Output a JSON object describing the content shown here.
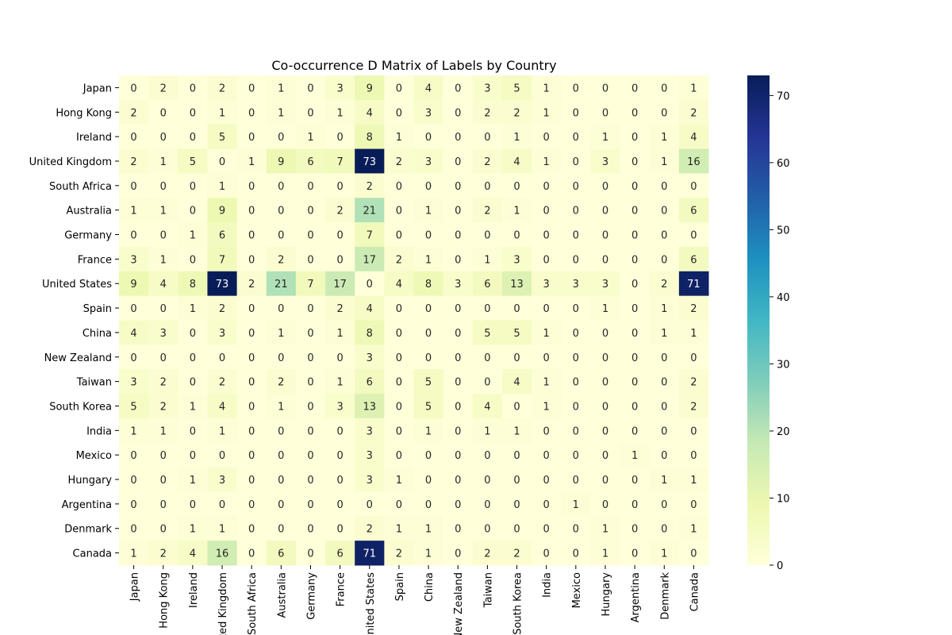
{
  "chart_data": {
    "type": "heatmap",
    "title": "Co-occurrence D Matrix of Labels by Country",
    "rows": [
      "Japan",
      "Hong Kong",
      "Ireland",
      "United Kingdom",
      "South Africa",
      "Australia",
      "Germany",
      "France",
      "United States",
      "Spain",
      "China",
      "New Zealand",
      "Taiwan",
      "South Korea",
      "India",
      "Mexico",
      "Hungary",
      "Argentina",
      "Denmark",
      "Canada"
    ],
    "columns": [
      "Japan",
      "Hong Kong",
      "Ireland",
      "United Kingdom",
      "South Africa",
      "Australia",
      "Germany",
      "France",
      "United States",
      "Spain",
      "China",
      "New Zealand",
      "Taiwan",
      "South Korea",
      "India",
      "Mexico",
      "Hungary",
      "Argentina",
      "Denmark",
      "Canada"
    ],
    "values": [
      [
        0,
        2,
        0,
        2,
        0,
        1,
        0,
        3,
        9,
        0,
        4,
        0,
        3,
        5,
        1,
        0,
        0,
        0,
        0,
        1
      ],
      [
        2,
        0,
        0,
        1,
        0,
        1,
        0,
        1,
        4,
        0,
        3,
        0,
        2,
        2,
        1,
        0,
        0,
        0,
        0,
        2
      ],
      [
        0,
        0,
        0,
        5,
        0,
        0,
        1,
        0,
        8,
        1,
        0,
        0,
        0,
        1,
        0,
        0,
        1,
        0,
        1,
        4
      ],
      [
        2,
        1,
        5,
        0,
        1,
        9,
        6,
        7,
        73,
        2,
        3,
        0,
        2,
        4,
        1,
        0,
        3,
        0,
        1,
        16
      ],
      [
        0,
        0,
        0,
        1,
        0,
        0,
        0,
        0,
        2,
        0,
        0,
        0,
        0,
        0,
        0,
        0,
        0,
        0,
        0,
        0
      ],
      [
        1,
        1,
        0,
        9,
        0,
        0,
        0,
        2,
        21,
        0,
        1,
        0,
        2,
        1,
        0,
        0,
        0,
        0,
        0,
        6
      ],
      [
        0,
        0,
        1,
        6,
        0,
        0,
        0,
        0,
        7,
        0,
        0,
        0,
        0,
        0,
        0,
        0,
        0,
        0,
        0,
        0
      ],
      [
        3,
        1,
        0,
        7,
        0,
        2,
        0,
        0,
        17,
        2,
        1,
        0,
        1,
        3,
        0,
        0,
        0,
        0,
        0,
        6
      ],
      [
        9,
        4,
        8,
        73,
        2,
        21,
        7,
        17,
        0,
        4,
        8,
        3,
        6,
        13,
        3,
        3,
        3,
        0,
        2,
        71
      ],
      [
        0,
        0,
        1,
        2,
        0,
        0,
        0,
        2,
        4,
        0,
        0,
        0,
        0,
        0,
        0,
        0,
        1,
        0,
        1,
        2
      ],
      [
        4,
        3,
        0,
        3,
        0,
        1,
        0,
        1,
        8,
        0,
        0,
        0,
        5,
        5,
        1,
        0,
        0,
        0,
        1,
        1
      ],
      [
        0,
        0,
        0,
        0,
        0,
        0,
        0,
        0,
        3,
        0,
        0,
        0,
        0,
        0,
        0,
        0,
        0,
        0,
        0,
        0
      ],
      [
        3,
        2,
        0,
        2,
        0,
        2,
        0,
        1,
        6,
        0,
        5,
        0,
        0,
        4,
        1,
        0,
        0,
        0,
        0,
        2
      ],
      [
        5,
        2,
        1,
        4,
        0,
        1,
        0,
        3,
        13,
        0,
        5,
        0,
        4,
        0,
        1,
        0,
        0,
        0,
        0,
        2
      ],
      [
        1,
        1,
        0,
        1,
        0,
        0,
        0,
        0,
        3,
        0,
        1,
        0,
        1,
        1,
        0,
        0,
        0,
        0,
        0,
        0
      ],
      [
        0,
        0,
        0,
        0,
        0,
        0,
        0,
        0,
        3,
        0,
        0,
        0,
        0,
        0,
        0,
        0,
        0,
        1,
        0,
        0
      ],
      [
        0,
        0,
        1,
        3,
        0,
        0,
        0,
        0,
        3,
        1,
        0,
        0,
        0,
        0,
        0,
        0,
        0,
        0,
        1,
        1
      ],
      [
        0,
        0,
        0,
        0,
        0,
        0,
        0,
        0,
        0,
        0,
        0,
        0,
        0,
        0,
        0,
        1,
        0,
        0,
        0,
        0
      ],
      [
        0,
        0,
        1,
        1,
        0,
        0,
        0,
        0,
        2,
        1,
        1,
        0,
        0,
        0,
        0,
        0,
        1,
        0,
        0,
        1
      ],
      [
        1,
        2,
        4,
        16,
        0,
        6,
        0,
        6,
        71,
        2,
        1,
        0,
        2,
        2,
        0,
        0,
        1,
        0,
        1,
        0
      ]
    ],
    "colormap": "YlGnBu",
    "color_range": [
      0,
      73
    ],
    "colorbar_ticks": [
      0,
      10,
      20,
      30,
      40,
      50,
      60,
      70
    ],
    "annotations": true,
    "grid": false,
    "legend": "colorbar-right"
  }
}
